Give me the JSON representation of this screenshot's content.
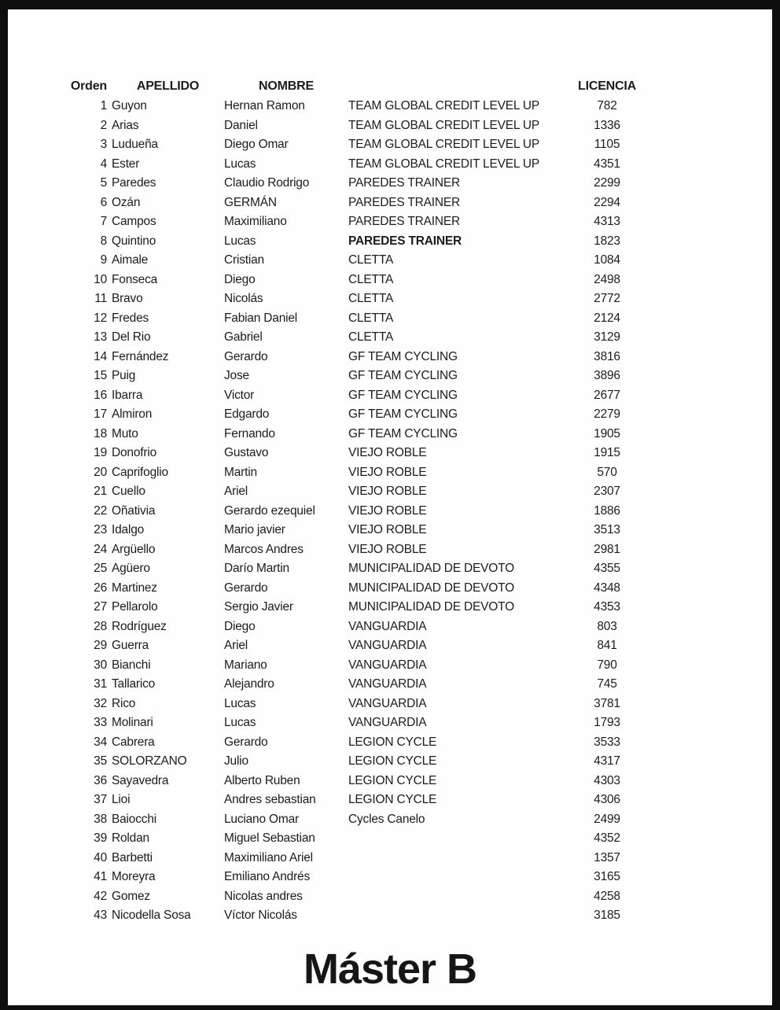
{
  "footer_title": "Máster B",
  "table": {
    "headers": {
      "orden": "Orden",
      "apellido": "APELLIDO",
      "nombre": "NOMBRE",
      "equipo": "",
      "licencia": "LICENCIA"
    },
    "rows": [
      {
        "orden": "1",
        "apellido": "Guyon",
        "nombre": "Hernan Ramon",
        "equipo": "TEAM GLOBAL CREDIT LEVEL UP",
        "licencia": "782"
      },
      {
        "orden": "2",
        "apellido": "Arias",
        "nombre": "Daniel",
        "equipo": "TEAM GLOBAL CREDIT LEVEL UP",
        "licencia": "1336"
      },
      {
        "orden": "3",
        "apellido": "Ludueña",
        "nombre": "Diego Omar",
        "equipo": "TEAM GLOBAL CREDIT LEVEL UP",
        "licencia": "1105"
      },
      {
        "orden": "4",
        "apellido": "Ester",
        "nombre": "Lucas",
        "equipo": "TEAM GLOBAL CREDIT LEVEL UP",
        "licencia": "4351"
      },
      {
        "orden": "5",
        "apellido": "Paredes",
        "nombre": "Claudio Rodrigo",
        "equipo": "PAREDES TRAINER",
        "licencia": "2299"
      },
      {
        "orden": "6",
        "apellido": "Ozán",
        "nombre": "GERMÁN",
        "equipo": "PAREDES TRAINER",
        "licencia": "2294"
      },
      {
        "orden": "7",
        "apellido": "Campos",
        "nombre": "Maximiliano",
        "equipo": "PAREDES TRAINER",
        "licencia": "4313"
      },
      {
        "orden": "8",
        "apellido": "Quintino",
        "nombre": "Lucas",
        "equipo": "PAREDES TRAINER",
        "licencia": "1823",
        "equipo_bold": true
      },
      {
        "orden": "9",
        "apellido": "Aimale",
        "nombre": "Cristian",
        "equipo": "CLETTA",
        "licencia": "1084"
      },
      {
        "orden": "10",
        "apellido": "Fonseca",
        "nombre": "Diego",
        "equipo": "CLETTA",
        "licencia": "2498"
      },
      {
        "orden": "11",
        "apellido": "Bravo",
        "nombre": "Nicolás",
        "equipo": "CLETTA",
        "licencia": "2772"
      },
      {
        "orden": "12",
        "apellido": "Fredes",
        "nombre": "Fabian Daniel",
        "equipo": "CLETTA",
        "licencia": "2124"
      },
      {
        "orden": "13",
        "apellido": "Del Rio",
        "nombre": "Gabriel",
        "equipo": "CLETTA",
        "licencia": "3129"
      },
      {
        "orden": "14",
        "apellido": "Fernández",
        "nombre": "Gerardo",
        "equipo": "GF TEAM CYCLING",
        "licencia": "3816"
      },
      {
        "orden": "15",
        "apellido": "Puig",
        "nombre": "Jose",
        "equipo": "GF TEAM CYCLING",
        "licencia": "3896"
      },
      {
        "orden": "16",
        "apellido": "Ibarra",
        "nombre": "Victor",
        "equipo": "GF TEAM CYCLING",
        "licencia": "2677"
      },
      {
        "orden": "17",
        "apellido": "Almiron",
        "nombre": "Edgardo",
        "equipo": "GF TEAM CYCLING",
        "licencia": "2279"
      },
      {
        "orden": "18",
        "apellido": "Muto",
        "nombre": "Fernando",
        "equipo": "GF TEAM CYCLING",
        "licencia": "1905"
      },
      {
        "orden": "19",
        "apellido": "Donofrio",
        "nombre": "Gustavo",
        "equipo": "VIEJO ROBLE",
        "licencia": "1915"
      },
      {
        "orden": "20",
        "apellido": "Caprifoglio",
        "nombre": "Martin",
        "equipo": "VIEJO ROBLE",
        "licencia": "570"
      },
      {
        "orden": "21",
        "apellido": "Cuello",
        "nombre": "Ariel",
        "equipo": "VIEJO ROBLE",
        "licencia": "2307"
      },
      {
        "orden": "22",
        "apellido": "Oñativia",
        "nombre": "Gerardo ezequiel",
        "equipo": "VIEJO ROBLE",
        "licencia": "1886"
      },
      {
        "orden": "23",
        "apellido": "Idalgo",
        "nombre": "Mario javier",
        "equipo": "VIEJO ROBLE",
        "licencia": "3513"
      },
      {
        "orden": "24",
        "apellido": "Argüello",
        "nombre": "Marcos Andres",
        "equipo": "VIEJO ROBLE",
        "licencia": "2981"
      },
      {
        "orden": "25",
        "apellido": "Agüero",
        "nombre": "Darío Martin",
        "equipo": "MUNICIPALIDAD DE DEVOTO",
        "licencia": "4355"
      },
      {
        "orden": "26",
        "apellido": "Martinez",
        "nombre": "Gerardo",
        "equipo": "MUNICIPALIDAD DE DEVOTO",
        "licencia": "4348"
      },
      {
        "orden": "27",
        "apellido": "Pellarolo",
        "nombre": "Sergio Javier",
        "equipo": "MUNICIPALIDAD DE DEVOTO",
        "licencia": "4353"
      },
      {
        "orden": "28",
        "apellido": "Rodríguez",
        "nombre": "Diego",
        "equipo": "VANGUARDIA",
        "licencia": "803"
      },
      {
        "orden": "29",
        "apellido": "Guerra",
        "nombre": "Ariel",
        "equipo": "VANGUARDIA",
        "licencia": "841"
      },
      {
        "orden": "30",
        "apellido": "Bianchi",
        "nombre": "Mariano",
        "equipo": "VANGUARDIA",
        "licencia": "790"
      },
      {
        "orden": "31",
        "apellido": "Tallarico",
        "nombre": "Alejandro",
        "equipo": "VANGUARDIA",
        "licencia": "745"
      },
      {
        "orden": "32",
        "apellido": "Rico",
        "nombre": "Lucas",
        "equipo": "VANGUARDIA",
        "licencia": "3781"
      },
      {
        "orden": "33",
        "apellido": "Molinari",
        "nombre": "Lucas",
        "equipo": "VANGUARDIA",
        "licencia": "1793"
      },
      {
        "orden": "34",
        "apellido": "Cabrera",
        "nombre": "Gerardo",
        "equipo": "LEGION CYCLE",
        "licencia": "3533"
      },
      {
        "orden": "35",
        "apellido": "SOLORZANO",
        "nombre": "Julio",
        "equipo": "LEGION CYCLE",
        "licencia": "4317"
      },
      {
        "orden": "36",
        "apellido": "Sayavedra",
        "nombre": "Alberto Ruben",
        "equipo": "LEGION CYCLE",
        "licencia": "4303"
      },
      {
        "orden": "37",
        "apellido": "Lioi",
        "nombre": "Andres sebastian",
        "equipo": "LEGION CYCLE",
        "licencia": "4306"
      },
      {
        "orden": "38",
        "apellido": "Baiocchi",
        "nombre": "Luciano Omar",
        "equipo": "Cycles Canelo",
        "licencia": "2499"
      },
      {
        "orden": "39",
        "apellido": "Roldan",
        "nombre": "Miguel Sebastian",
        "equipo": "",
        "licencia": "4352"
      },
      {
        "orden": "40",
        "apellido": "Barbetti",
        "nombre": "Maximiliano Ariel",
        "equipo": "",
        "licencia": "1357"
      },
      {
        "orden": "41",
        "apellido": "Moreyra",
        "nombre": "Emiliano Andrés",
        "equipo": "",
        "licencia": "3165"
      },
      {
        "orden": "42",
        "apellido": "Gomez",
        "nombre": "Nicolas andres",
        "equipo": "",
        "licencia": "4258"
      },
      {
        "orden": "43",
        "apellido": "Nicodella Sosa",
        "nombre": "Víctor Nicolás",
        "equipo": "",
        "licencia": "3185"
      }
    ]
  }
}
